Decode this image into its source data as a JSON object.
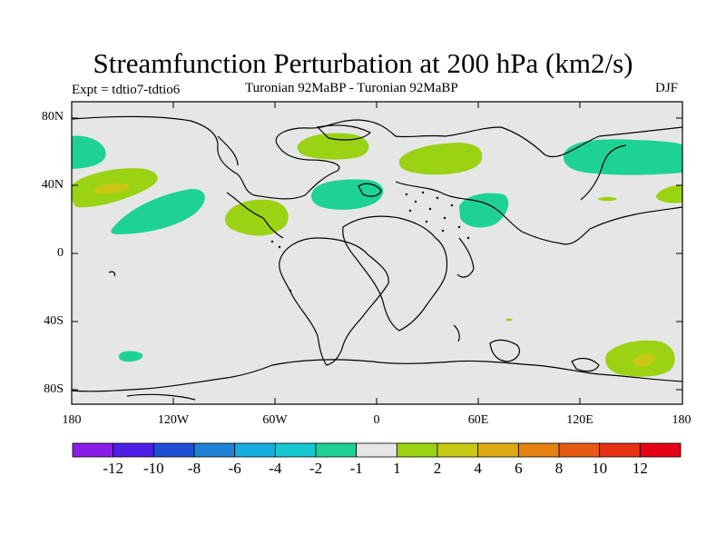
{
  "title": "Streamfunction Perturbation at 200 hPa (km2/s)",
  "subtitle_left": "Expt = tdtio7-tdtio6",
  "subtitle_center": "Turonian  92MaBP - Turonian  92MaBP",
  "subtitle_right": "DJF",
  "lat_labels": [
    "80N",
    "40N",
    "0",
    "40S",
    "80S"
  ],
  "lon_labels": [
    "180",
    "120W",
    "60W",
    "0",
    "60E",
    "120E",
    "180"
  ],
  "colorbar": {
    "labels": [
      "-12",
      "-10",
      "-8",
      "-6",
      "-4",
      "-2",
      "-1",
      "1",
      "2",
      "4",
      "6",
      "8",
      "10",
      "12"
    ],
    "colors": [
      "#8a1ee6",
      "#4d1ee6",
      "#1e50d6",
      "#1e82d6",
      "#14aede",
      "#14c8d2",
      "#1ed296",
      "#e6e6e6",
      "#9ad214",
      "#c8c814",
      "#deaa14",
      "#e68214",
      "#e65a14",
      "#e63214",
      "#e60014"
    ]
  },
  "colors": {
    "background_field": "#e6e6e6",
    "positive_1_2": "#9ad214",
    "positive_2_4": "#c8c814",
    "negative_1_2": "#1ed296"
  }
}
